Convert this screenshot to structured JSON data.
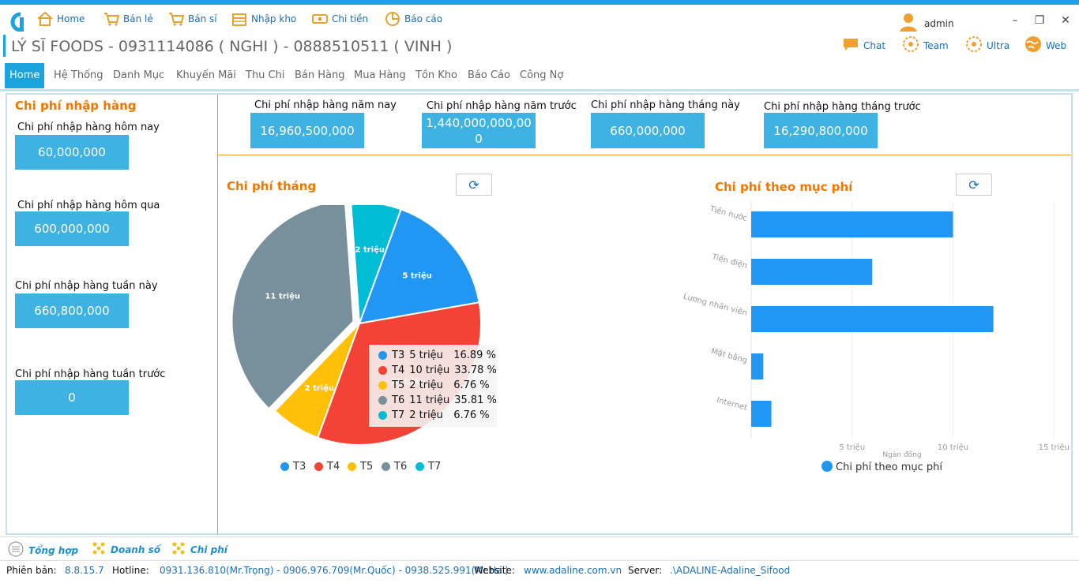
{
  "toolbar": {
    "items": [
      {
        "label": "Home",
        "icon": "house-icon"
      },
      {
        "label": "Bán lẻ",
        "icon": "cart-icon"
      },
      {
        "label": "Bán sỉ",
        "icon": "cart-icon"
      },
      {
        "label": "Nhập kho",
        "icon": "warehouse-icon"
      },
      {
        "label": "Chi tiền",
        "icon": "money-icon"
      },
      {
        "label": "Báo cáo",
        "icon": "report-icon"
      }
    ],
    "user": "admin"
  },
  "app_title": "LÝ SĨ FOODS - 0931114086 ( NGHI ) - 0888510511 ( VINH )",
  "right_links": [
    "Chat",
    "Team",
    "Ultra",
    "Web"
  ],
  "menu": {
    "items": [
      "Home",
      "Hệ Thống",
      "Danh Mục",
      "Khuyến Mãi",
      "Thu Chi",
      "Bán Hàng",
      "Mua Hàng",
      "Tồn Kho",
      "Báo Cáo",
      "Công Nợ"
    ],
    "active": "Home"
  },
  "left_panel": {
    "title": "Chi phí nhập hàng",
    "cards": [
      {
        "label": "Chi phí nhập hàng hôm nay",
        "value": "60,000,000"
      },
      {
        "label": "Chi phí nhập hàng hôm qua",
        "value": "600,000,000"
      },
      {
        "label": "Chi phí nhập hàng tuần này",
        "value": "660,800,000"
      },
      {
        "label": "Chi phí nhập hàng tuần trước",
        "value": "0"
      }
    ]
  },
  "top_cards": [
    {
      "label": "Chi phí nhập hàng năm nay",
      "value": "16,960,500,000"
    },
    {
      "label": "Chi phí nhập hàng năm trước",
      "value": "1,440,000,000,00",
      "value2": "0"
    },
    {
      "label": "Chi phí nhập hàng tháng này",
      "value": "660,000,000"
    },
    {
      "label": "Chi phí nhập hàng tháng trước",
      "value": "16,290,800,000"
    }
  ],
  "pie_panel": {
    "title": "Chi phí tháng",
    "tooltip": [
      {
        "name": "T3",
        "amount": "5 triệu",
        "percent": "16.89 %"
      },
      {
        "name": "T4",
        "amount": "10 triệu",
        "percent": "33.78 %"
      },
      {
        "name": "T5",
        "amount": "2 triệu",
        "percent": "6.76 %"
      },
      {
        "name": "T6",
        "amount": "11 triệu",
        "percent": "35.81 %"
      },
      {
        "name": "T7",
        "amount": "2 triệu",
        "percent": "6.76 %"
      }
    ]
  },
  "bar_panel": {
    "title": "Chi phí theo mục phí"
  },
  "chart_data": [
    {
      "type": "pie",
      "title": "Chi phí tháng",
      "categories": [
        "T3",
        "T4",
        "T5",
        "T6",
        "T7"
      ],
      "values": [
        5,
        10,
        2,
        11,
        2
      ],
      "percents": [
        16.89,
        33.78,
        6.76,
        35.81,
        6.76
      ],
      "data_labels": [
        "5 triệu",
        "10 triệu",
        "2 triệu",
        "11 triệu",
        "2 triệu"
      ],
      "colors": [
        "#2196f3",
        "#f44336",
        "#ffc107",
        "#78909c",
        "#00bcd4"
      ],
      "legend_position": "bottom"
    },
    {
      "type": "bar",
      "orientation": "horizontal",
      "title": "Chi phí theo mục phí",
      "categories": [
        "Tiền nước",
        "Tiền điện",
        "Lương nhân viên",
        "Mặt bằng",
        "Internet"
      ],
      "series": [
        {
          "name": "Chi phí theo mục phí",
          "values": [
            10,
            6,
            12,
            0.6,
            1
          ]
        }
      ],
      "xlabel": "Ngàn đồng",
      "xticks": [
        "5 triệu",
        "10 triệu",
        "15 triệu"
      ],
      "xlim": [
        0,
        15
      ],
      "color": "#2196f3",
      "legend_position": "bottom"
    }
  ],
  "bottom_tabs": [
    "Tổng hợp",
    "Doanh số",
    "Chi phí"
  ],
  "status": {
    "version_label": "Phiên bản:",
    "version": "8.8.15.7",
    "hotline_label": "Hotline:",
    "hotline": "0931.136.810(Mr.Trọng) - 0906.976.709(Mr.Quốc) - 0938.525.991(Mr.Hai)",
    "website_label": "Website:",
    "website": "www.adaline.com.vn",
    "server_label": "Server:",
    "server": ".\\ADALINE-Adaline_Sifood"
  }
}
